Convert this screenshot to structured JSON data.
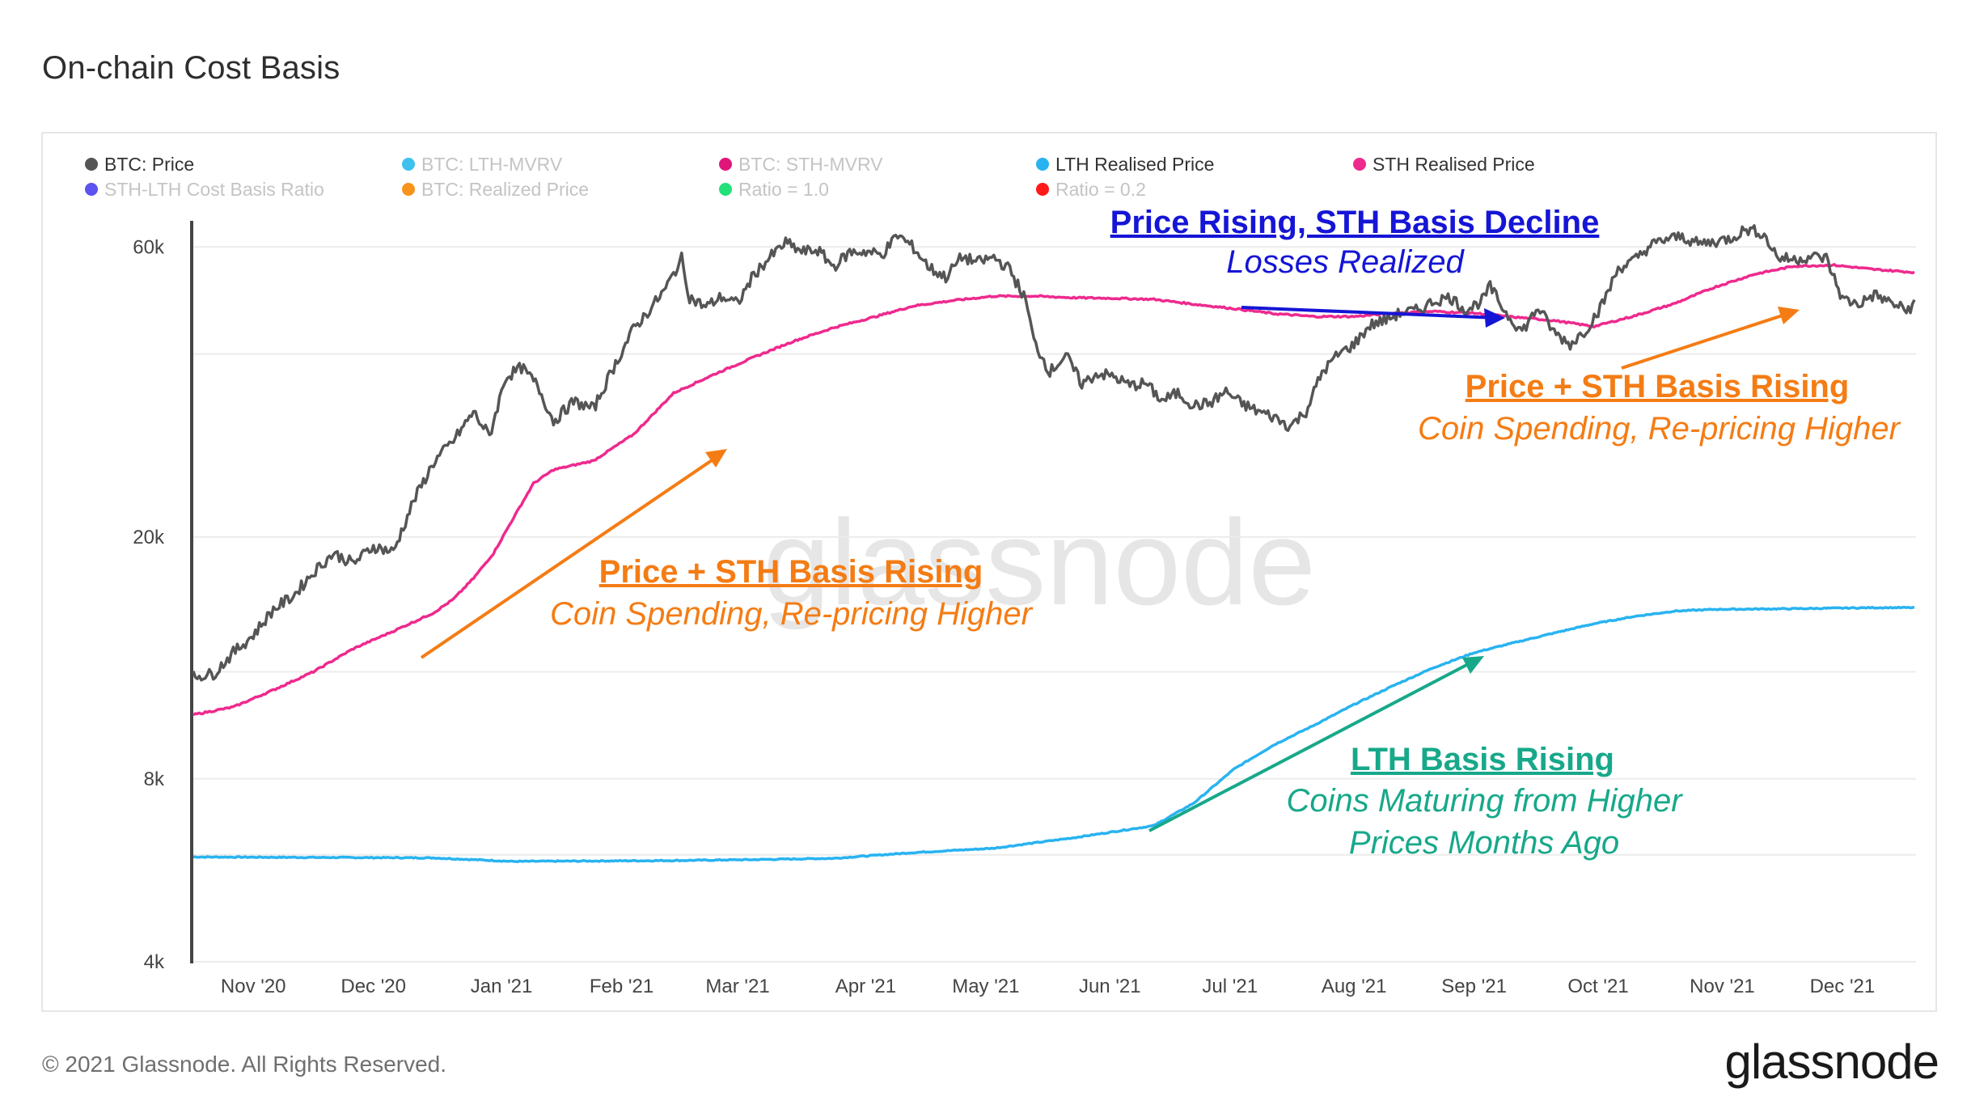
{
  "page": {
    "title": "On-chain Cost Basis",
    "copyright": "© 2021 Glassnode. All Rights Reserved.",
    "logo": "glassnode",
    "watermark": "glassnode"
  },
  "legend": [
    {
      "label": "BTC: Price",
      "color": "#555555",
      "active": true
    },
    {
      "label": "BTC: LTH-MVRV",
      "color": "#3fc1f0",
      "active": false
    },
    {
      "label": "BTC: STH-MVRV",
      "color": "#e0157a",
      "active": false
    },
    {
      "label": "LTH Realised Price",
      "color": "#29b3f0",
      "active": true
    },
    {
      "label": "STH Realised Price",
      "color": "#ee2a8e",
      "active": true
    },
    {
      "label": "STH-LTH Cost Basis Ratio",
      "color": "#5b52f0",
      "active": false
    },
    {
      "label": "BTC: Realized Price",
      "color": "#f7931a",
      "active": false
    },
    {
      "label": "Ratio = 1.0",
      "color": "#22e07a",
      "active": false
    },
    {
      "label": "Ratio = 0.2",
      "color": "#ff1a1a",
      "active": false
    }
  ],
  "annotations": [
    {
      "id": "sth-decline",
      "title": "Price Rising, STH Basis Decline",
      "subtitle": "Losses Realized",
      "color": "#1515d6"
    },
    {
      "id": "sth-rising-late",
      "title": "Price + STH Basis Rising",
      "subtitle": "Coin Spending, Re-pricing Higher",
      "color": "#f47c14"
    },
    {
      "id": "sth-rising-early",
      "title": "Price + STH Basis Rising",
      "subtitle": "Coin Spending, Re-pricing Higher",
      "color": "#f47c14"
    },
    {
      "id": "lth-rising",
      "title": "LTH Basis Rising",
      "subtitle": "Coins Maturing from Higher",
      "subtitle2": "Prices Months Ago",
      "color": "#17a88a"
    }
  ],
  "chart_data": {
    "type": "line",
    "title": "On-chain Cost Basis",
    "y_scale": "log",
    "ylim": [
      4000,
      70000
    ],
    "y_ticks": [
      {
        "value": 4000,
        "label": "4k"
      },
      {
        "value": 8000,
        "label": "8k"
      },
      {
        "value": 20000,
        "label": "20k"
      },
      {
        "value": 60000,
        "label": "60k"
      }
    ],
    "x_range": [
      "2020-10-20",
      "2021-12-24"
    ],
    "x_ticks": [
      "Nov '20",
      "Dec '20",
      "Jan '21",
      "Feb '21",
      "Mar '21",
      "Apr '21",
      "May '21",
      "Jun '21",
      "Jul '21",
      "Aug '21",
      "Sep '21",
      "Oct '21",
      "Nov '21",
      "Dec '21"
    ],
    "x_tick_days": [
      15,
      45,
      77,
      107,
      136,
      168,
      198,
      229,
      259,
      290,
      320,
      351,
      382,
      412
    ],
    "series": [
      {
        "name": "BTC: Price",
        "color": "#555555",
        "points": [
          [
            0,
            11800
          ],
          [
            5,
            11900
          ],
          [
            10,
            12900
          ],
          [
            15,
            13800
          ],
          [
            20,
            15200
          ],
          [
            25,
            16000
          ],
          [
            30,
            17500
          ],
          [
            35,
            18800
          ],
          [
            40,
            18100
          ],
          [
            45,
            19300
          ],
          [
            50,
            18900
          ],
          [
            55,
            22900
          ],
          [
            60,
            26500
          ],
          [
            65,
            28800
          ],
          [
            70,
            32100
          ],
          [
            74,
            29300
          ],
          [
            78,
            36600
          ],
          [
            82,
            38000
          ],
          [
            86,
            35500
          ],
          [
            90,
            31000
          ],
          [
            95,
            33400
          ],
          [
            100,
            32500
          ],
          [
            105,
            38000
          ],
          [
            110,
            44000
          ],
          [
            114,
            47300
          ],
          [
            118,
            51200
          ],
          [
            122,
            57400
          ],
          [
            124,
            49600
          ],
          [
            128,
            47800
          ],
          [
            132,
            49700
          ],
          [
            136,
            48400
          ],
          [
            140,
            54000
          ],
          [
            144,
            57600
          ],
          [
            148,
            61000
          ],
          [
            152,
            58900
          ],
          [
            156,
            59300
          ],
          [
            160,
            55700
          ],
          [
            164,
            58800
          ],
          [
            168,
            59000
          ],
          [
            172,
            58200
          ],
          [
            176,
            62800
          ],
          [
            180,
            59800
          ],
          [
            184,
            55400
          ],
          [
            188,
            53500
          ],
          [
            192,
            57800
          ],
          [
            196,
            56600
          ],
          [
            200,
            57700
          ],
          [
            204,
            55100
          ],
          [
            208,
            49000
          ],
          [
            210,
            42000
          ],
          [
            214,
            37400
          ],
          [
            218,
            39800
          ],
          [
            222,
            35700
          ],
          [
            226,
            37200
          ],
          [
            230,
            36700
          ],
          [
            234,
            35500
          ],
          [
            238,
            35800
          ],
          [
            242,
            33500
          ],
          [
            246,
            34500
          ],
          [
            250,
            32900
          ],
          [
            254,
            33200
          ],
          [
            258,
            34700
          ],
          [
            262,
            33100
          ],
          [
            266,
            32200
          ],
          [
            270,
            31500
          ],
          [
            274,
            30400
          ],
          [
            278,
            32200
          ],
          [
            282,
            37300
          ],
          [
            286,
            39900
          ],
          [
            290,
            41500
          ],
          [
            294,
            44600
          ],
          [
            298,
            45600
          ],
          [
            302,
            46800
          ],
          [
            306,
            47200
          ],
          [
            310,
            48900
          ],
          [
            314,
            49600
          ],
          [
            318,
            47200
          ],
          [
            322,
            49000
          ],
          [
            324,
            51600
          ],
          [
            328,
            46700
          ],
          [
            332,
            43600
          ],
          [
            336,
            47700
          ],
          [
            340,
            43400
          ],
          [
            344,
            41500
          ],
          [
            348,
            43900
          ],
          [
            352,
            48200
          ],
          [
            356,
            55300
          ],
          [
            360,
            57000
          ],
          [
            364,
            60300
          ],
          [
            368,
            61800
          ],
          [
            372,
            62400
          ],
          [
            376,
            60700
          ],
          [
            380,
            61200
          ],
          [
            384,
            62000
          ],
          [
            388,
            64200
          ],
          [
            392,
            63300
          ],
          [
            396,
            57600
          ],
          [
            400,
            57200
          ],
          [
            404,
            57900
          ],
          [
            408,
            57500
          ],
          [
            412,
            49300
          ],
          [
            416,
            48300
          ],
          [
            420,
            50100
          ],
          [
            424,
            48600
          ],
          [
            428,
            47200
          ],
          [
            430,
            48300
          ]
        ]
      },
      {
        "name": "STH Realised Price",
        "color": "#ee2a8e",
        "points": [
          [
            0,
            10200
          ],
          [
            10,
            10500
          ],
          [
            20,
            11200
          ],
          [
            30,
            12000
          ],
          [
            40,
            13100
          ],
          [
            50,
            14000
          ],
          [
            60,
            15000
          ],
          [
            65,
            15800
          ],
          [
            70,
            17100
          ],
          [
            75,
            18800
          ],
          [
            80,
            21500
          ],
          [
            85,
            24500
          ],
          [
            90,
            25800
          ],
          [
            100,
            26700
          ],
          [
            110,
            29500
          ],
          [
            120,
            34500
          ],
          [
            130,
            37000
          ],
          [
            140,
            39500
          ],
          [
            150,
            42000
          ],
          [
            160,
            44200
          ],
          [
            170,
            46000
          ],
          [
            180,
            48000
          ],
          [
            190,
            49000
          ],
          [
            200,
            49800
          ],
          [
            210,
            49800
          ],
          [
            220,
            49500
          ],
          [
            230,
            49400
          ],
          [
            240,
            49200
          ],
          [
            250,
            48300
          ],
          [
            260,
            47500
          ],
          [
            270,
            46600
          ],
          [
            280,
            46100
          ],
          [
            290,
            46100
          ],
          [
            300,
            46700
          ],
          [
            310,
            47000
          ],
          [
            320,
            46700
          ],
          [
            330,
            46000
          ],
          [
            340,
            45400
          ],
          [
            350,
            44400
          ],
          [
            360,
            46200
          ],
          [
            370,
            48400
          ],
          [
            380,
            51500
          ],
          [
            390,
            54100
          ],
          [
            400,
            55800
          ],
          [
            410,
            56000
          ],
          [
            420,
            55100
          ],
          [
            430,
            54500
          ]
        ]
      },
      {
        "name": "LTH Realised Price",
        "color": "#29b3f0",
        "points": [
          [
            0,
            5950
          ],
          [
            30,
            5940
          ],
          [
            60,
            5930
          ],
          [
            80,
            5850
          ],
          [
            100,
            5860
          ],
          [
            120,
            5870
          ],
          [
            140,
            5890
          ],
          [
            160,
            5920
          ],
          [
            180,
            6050
          ],
          [
            200,
            6150
          ],
          [
            220,
            6400
          ],
          [
            240,
            6700
          ],
          [
            250,
            7300
          ],
          [
            260,
            8300
          ],
          [
            270,
            9100
          ],
          [
            280,
            9800
          ],
          [
            290,
            10600
          ],
          [
            300,
            11400
          ],
          [
            310,
            12200
          ],
          [
            320,
            12900
          ],
          [
            330,
            13400
          ],
          [
            340,
            13900
          ],
          [
            350,
            14400
          ],
          [
            360,
            14800
          ],
          [
            370,
            15100
          ],
          [
            380,
            15200
          ],
          [
            390,
            15220
          ],
          [
            400,
            15240
          ],
          [
            410,
            15270
          ],
          [
            420,
            15300
          ],
          [
            430,
            15300
          ]
        ]
      }
    ]
  }
}
